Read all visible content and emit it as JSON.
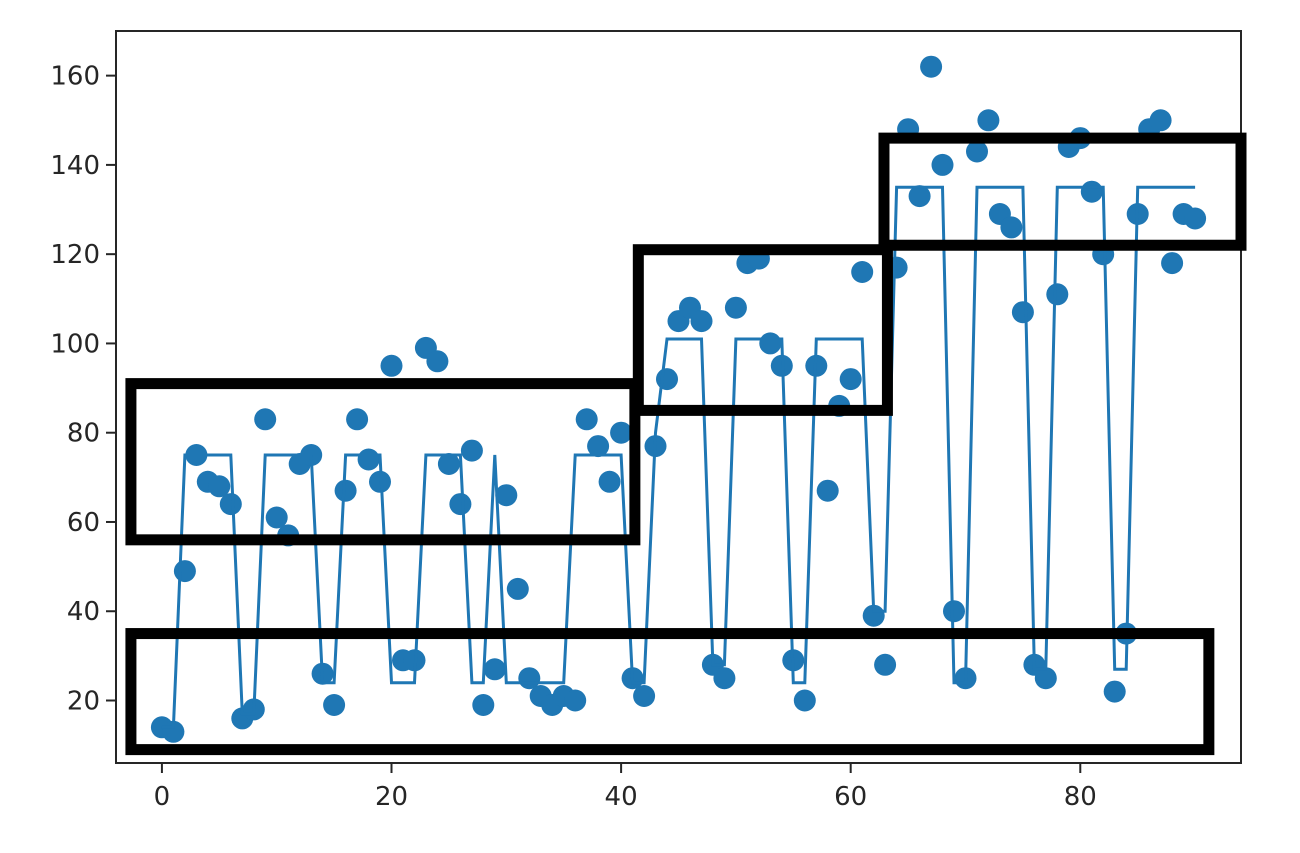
{
  "chart_data": {
    "type": "scatter",
    "title": "",
    "xlabel": "",
    "ylabel": "",
    "xlim": [
      -4,
      94
    ],
    "ylim": [
      6,
      170
    ],
    "grid": false,
    "x_ticks": [
      0,
      20,
      40,
      60,
      80
    ],
    "y_ticks": [
      20,
      40,
      60,
      80,
      100,
      120,
      140,
      160
    ],
    "x_tick_labels": [
      "0",
      "20",
      "40",
      "60",
      "80"
    ],
    "y_tick_labels": [
      "20",
      "40",
      "60",
      "80",
      "100",
      "120",
      "140",
      "160"
    ],
    "series": [
      {
        "kind": "points",
        "color": "#1f77b4",
        "x": [
          0,
          1,
          2,
          3,
          4,
          5,
          6,
          7,
          8,
          9,
          10,
          11,
          12,
          13,
          14,
          15,
          16,
          17,
          18,
          19,
          20,
          21,
          22,
          23,
          24,
          25,
          26,
          27,
          28,
          29,
          30,
          31,
          32,
          33,
          34,
          35,
          36,
          37,
          38,
          39,
          40,
          41,
          42,
          43,
          44,
          45,
          46,
          47,
          48,
          49,
          50,
          51,
          52,
          53,
          54,
          55,
          56,
          57,
          58,
          59,
          60,
          61,
          62,
          63,
          64,
          65,
          66,
          67,
          68,
          69,
          70,
          71,
          72,
          73,
          74,
          75,
          76,
          77,
          78,
          79,
          80,
          81,
          82,
          83,
          84,
          85,
          86,
          87,
          88,
          89,
          90
        ],
        "y": [
          14,
          13,
          49,
          75,
          69,
          68,
          64,
          16,
          18,
          83,
          61,
          57,
          73,
          75,
          26,
          19,
          67,
          83,
          74,
          69,
          95,
          29,
          29,
          99,
          96,
          73,
          64,
          76,
          19,
          27,
          66,
          45,
          25,
          21,
          19,
          21,
          20,
          83,
          77,
          69,
          80,
          25,
          21,
          77,
          92,
          105,
          108,
          105,
          28,
          25,
          108,
          118,
          119,
          100,
          95,
          29,
          20,
          95,
          67,
          86,
          92,
          116,
          39,
          28,
          117,
          148,
          133,
          162,
          140,
          40,
          25,
          143,
          150,
          129,
          126,
          107,
          28,
          25,
          111,
          144,
          146,
          134,
          120,
          22,
          35,
          129,
          148,
          150,
          118,
          129,
          128
        ]
      },
      {
        "kind": "line",
        "color": "#1f77b4",
        "x": [
          0,
          1,
          2,
          3,
          4,
          5,
          6,
          7,
          8,
          9,
          10,
          11,
          12,
          13,
          14,
          15,
          16,
          17,
          18,
          19,
          20,
          21,
          22,
          23,
          24,
          25,
          26,
          27,
          28,
          29,
          30,
          31,
          32,
          33,
          34,
          35,
          36,
          37,
          38,
          39,
          40,
          41,
          42,
          43,
          44,
          45,
          46,
          47,
          48,
          49,
          50,
          51,
          52,
          53,
          54,
          55,
          56,
          57,
          58,
          59,
          60,
          61,
          62,
          63,
          64,
          65,
          66,
          67,
          68,
          69,
          70,
          71,
          72,
          73,
          74,
          75,
          76,
          77,
          78,
          79,
          80,
          81,
          82,
          83,
          84,
          85,
          86,
          87,
          88,
          89,
          90
        ],
        "y": [
          14,
          14,
          75,
          75,
          75,
          75,
          75,
          17,
          17,
          75,
          75,
          75,
          75,
          75,
          24,
          24,
          75,
          75,
          75,
          75,
          24,
          24,
          24,
          75,
          75,
          75,
          75,
          24,
          24,
          75,
          24,
          24,
          24,
          24,
          24,
          24,
          75,
          75,
          75,
          75,
          75,
          24,
          24,
          80,
          101,
          101,
          101,
          101,
          28,
          28,
          101,
          101,
          101,
          101,
          101,
          24,
          24,
          101,
          101,
          101,
          101,
          101,
          40,
          40,
          135,
          135,
          135,
          135,
          135,
          24,
          24,
          135,
          135,
          135,
          135,
          135,
          27,
          27,
          135,
          135,
          135,
          135,
          135,
          27,
          27,
          135,
          135,
          135,
          135,
          135,
          135
        ]
      }
    ],
    "annotation_boxes": [
      {
        "x0": -2.7,
        "x1": 41.2,
        "y0": 56,
        "y1": 91
      },
      {
        "x0": -2.7,
        "x1": 91.2,
        "y0": 9,
        "y1": 35
      },
      {
        "x0": 41.5,
        "x1": 63.2,
        "y0": 85,
        "y1": 121
      },
      {
        "x0": 62.9,
        "x1": 94.0,
        "y0": 122,
        "y1": 146
      }
    ],
    "box_color": "#000000",
    "axes_color": "#262626"
  }
}
